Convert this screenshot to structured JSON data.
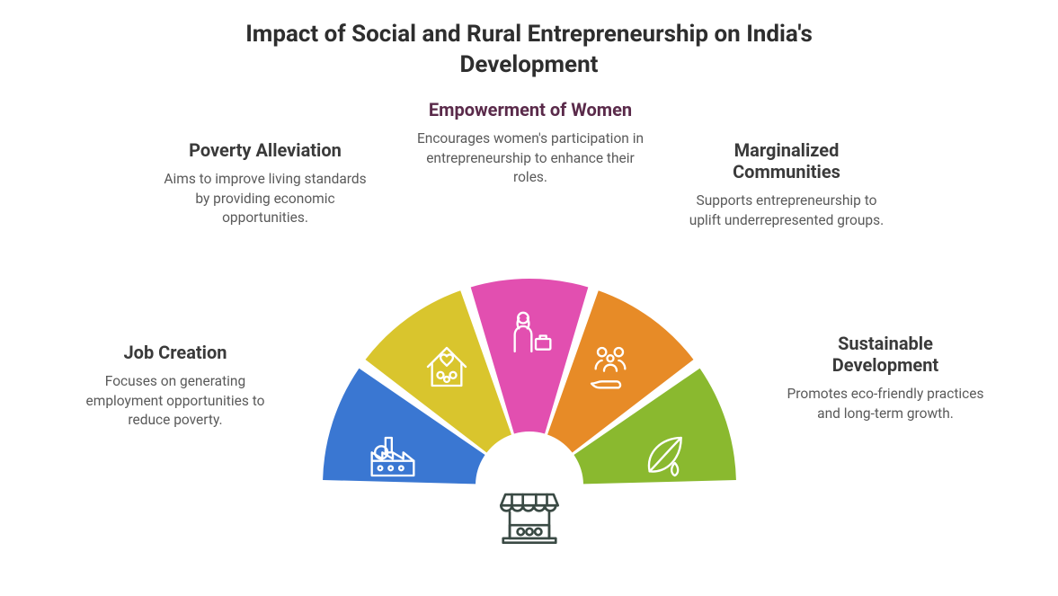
{
  "title": "Impact of Social and Rural Entrepreneurship on India's Development",
  "background_color": "#ffffff",
  "title_color": "#2e2e2e",
  "title_fontsize": 26,
  "label_heading_color": "#3a3a3a",
  "label_heading_highlight_color": "#5a2a4a",
  "label_body_color": "#5a5a5a",
  "center_icon_stroke": "#3a4a44",
  "fan": {
    "type": "infographic",
    "segments_count": 5,
    "start_angle_deg": 180,
    "end_angle_deg": 360,
    "gap_deg": 3,
    "inner_radius": 60,
    "outer_radius": 230,
    "colors": [
      "#3a77d2",
      "#d9c52d",
      "#e24fb0",
      "#e78b27",
      "#8ab92f"
    ],
    "icon_stroke": "#ffffff"
  },
  "segments": [
    {
      "key": "job_creation",
      "heading": "Job Creation",
      "body": "Focuses on generating employment opportunities to reduce poverty.",
      "color": "#3a77d2",
      "icon": "factory"
    },
    {
      "key": "poverty_alleviation",
      "heading": "Poverty Alleviation",
      "body": "Aims to improve living standards by providing economic opportunities.",
      "color": "#d9c52d",
      "icon": "house-family"
    },
    {
      "key": "empowerment_women",
      "heading": "Empowerment of Women",
      "body": "Encourages women's participation in entrepreneurship to enhance their roles.",
      "color": "#e24fb0",
      "icon": "woman-briefcase",
      "highlight": true
    },
    {
      "key": "marginalized",
      "heading": "Marginalized Communities",
      "body": "Supports entrepreneurship to uplift underrepresented groups.",
      "color": "#e78b27",
      "icon": "people-hand"
    },
    {
      "key": "sustainable",
      "heading": "Sustainable Development",
      "body": "Promotes eco-friendly practices and long-term growth.",
      "color": "#8ab92f",
      "icon": "leaf-drop"
    }
  ]
}
